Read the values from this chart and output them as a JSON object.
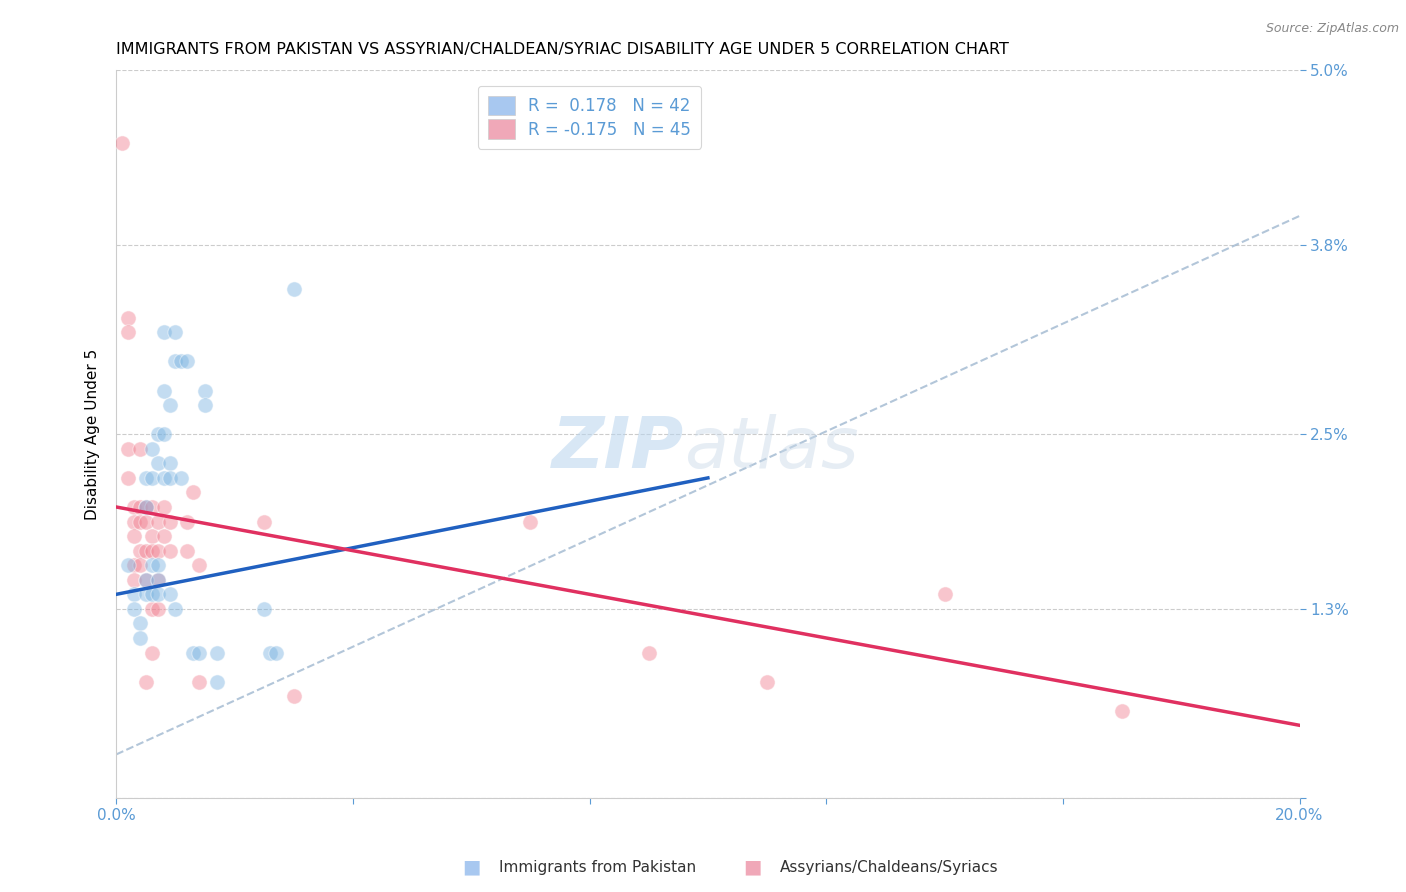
{
  "title": "IMMIGRANTS FROM PAKISTAN VS ASSYRIAN/CHALDEAN/SYRIAC DISABILITY AGE UNDER 5 CORRELATION CHART",
  "source": "Source: ZipAtlas.com",
  "ylabel": "Disability Age Under 5",
  "xlim": [
    0.0,
    0.2
  ],
  "ylim": [
    0.0,
    0.05
  ],
  "yticks": [
    0.0,
    0.013,
    0.025,
    0.038,
    0.05
  ],
  "ytick_labels": [
    "",
    "1.3%",
    "2.5%",
    "3.8%",
    "5.0%"
  ],
  "xticks": [
    0.0,
    0.04,
    0.08,
    0.12,
    0.16,
    0.2
  ],
  "xtick_labels": [
    "0.0%",
    "",
    "",
    "",
    "",
    "20.0%"
  ],
  "legend_line1": "R =  0.178   N = 42",
  "legend_line2": "R = -0.175   N = 45",
  "legend_patch_blue": "#a8c8f0",
  "legend_patch_pink": "#f0a8b8",
  "legend_text_color": "#5b9bd5",
  "bottom_label_blue": "Immigrants from Pakistan",
  "bottom_label_pink": "Assyrians/Chaldeans/Syriacs",
  "blue_color": "#7ab3e0",
  "pink_color": "#f08090",
  "blue_scatter": [
    [
      0.002,
      0.016
    ],
    [
      0.003,
      0.014
    ],
    [
      0.003,
      0.013
    ],
    [
      0.004,
      0.012
    ],
    [
      0.004,
      0.011
    ],
    [
      0.005,
      0.022
    ],
    [
      0.005,
      0.02
    ],
    [
      0.005,
      0.015
    ],
    [
      0.005,
      0.014
    ],
    [
      0.006,
      0.024
    ],
    [
      0.006,
      0.022
    ],
    [
      0.006,
      0.016
    ],
    [
      0.006,
      0.014
    ],
    [
      0.007,
      0.025
    ],
    [
      0.007,
      0.023
    ],
    [
      0.007,
      0.016
    ],
    [
      0.007,
      0.015
    ],
    [
      0.007,
      0.014
    ],
    [
      0.008,
      0.032
    ],
    [
      0.008,
      0.028
    ],
    [
      0.008,
      0.025
    ],
    [
      0.008,
      0.022
    ],
    [
      0.009,
      0.027
    ],
    [
      0.009,
      0.023
    ],
    [
      0.009,
      0.022
    ],
    [
      0.009,
      0.014
    ],
    [
      0.01,
      0.032
    ],
    [
      0.01,
      0.03
    ],
    [
      0.01,
      0.013
    ],
    [
      0.011,
      0.03
    ],
    [
      0.011,
      0.022
    ],
    [
      0.012,
      0.03
    ],
    [
      0.013,
      0.01
    ],
    [
      0.014,
      0.01
    ],
    [
      0.015,
      0.028
    ],
    [
      0.015,
      0.027
    ],
    [
      0.017,
      0.01
    ],
    [
      0.017,
      0.008
    ],
    [
      0.025,
      0.013
    ],
    [
      0.026,
      0.01
    ],
    [
      0.027,
      0.01
    ],
    [
      0.03,
      0.035
    ]
  ],
  "pink_scatter": [
    [
      0.001,
      0.045
    ],
    [
      0.002,
      0.033
    ],
    [
      0.002,
      0.032
    ],
    [
      0.002,
      0.024
    ],
    [
      0.002,
      0.022
    ],
    [
      0.003,
      0.02
    ],
    [
      0.003,
      0.019
    ],
    [
      0.003,
      0.018
    ],
    [
      0.003,
      0.016
    ],
    [
      0.003,
      0.015
    ],
    [
      0.004,
      0.024
    ],
    [
      0.004,
      0.02
    ],
    [
      0.004,
      0.019
    ],
    [
      0.004,
      0.017
    ],
    [
      0.004,
      0.016
    ],
    [
      0.005,
      0.02
    ],
    [
      0.005,
      0.019
    ],
    [
      0.005,
      0.017
    ],
    [
      0.005,
      0.015
    ],
    [
      0.005,
      0.008
    ],
    [
      0.006,
      0.02
    ],
    [
      0.006,
      0.018
    ],
    [
      0.006,
      0.017
    ],
    [
      0.006,
      0.013
    ],
    [
      0.006,
      0.01
    ],
    [
      0.007,
      0.019
    ],
    [
      0.007,
      0.017
    ],
    [
      0.007,
      0.015
    ],
    [
      0.007,
      0.013
    ],
    [
      0.008,
      0.02
    ],
    [
      0.008,
      0.018
    ],
    [
      0.009,
      0.019
    ],
    [
      0.009,
      0.017
    ],
    [
      0.012,
      0.019
    ],
    [
      0.012,
      0.017
    ],
    [
      0.013,
      0.021
    ],
    [
      0.014,
      0.016
    ],
    [
      0.014,
      0.008
    ],
    [
      0.025,
      0.019
    ],
    [
      0.03,
      0.007
    ],
    [
      0.07,
      0.019
    ],
    [
      0.09,
      0.01
    ],
    [
      0.11,
      0.008
    ],
    [
      0.14,
      0.014
    ],
    [
      0.17,
      0.006
    ]
  ],
  "blue_line_x": [
    0.0,
    0.1
  ],
  "blue_line_y": [
    0.014,
    0.022
  ],
  "pink_line_x": [
    0.0,
    0.2
  ],
  "pink_line_y": [
    0.02,
    0.005
  ],
  "dash_line_x": [
    0.0,
    0.2
  ],
  "dash_line_y": [
    0.003,
    0.04
  ],
  "watermark_zip": "ZIP",
  "watermark_atlas": "atlas",
  "bg_color": "#ffffff",
  "grid_color": "#cccccc",
  "title_fontsize": 11.5,
  "axis_label_fontsize": 11,
  "tick_fontsize": 11,
  "scatter_size": 120,
  "scatter_alpha": 0.45,
  "right_ytick_color": "#5b9bd5",
  "blue_line_color": "#2060c0",
  "pink_line_color": "#e03060",
  "dash_line_color": "#a0b8d0"
}
